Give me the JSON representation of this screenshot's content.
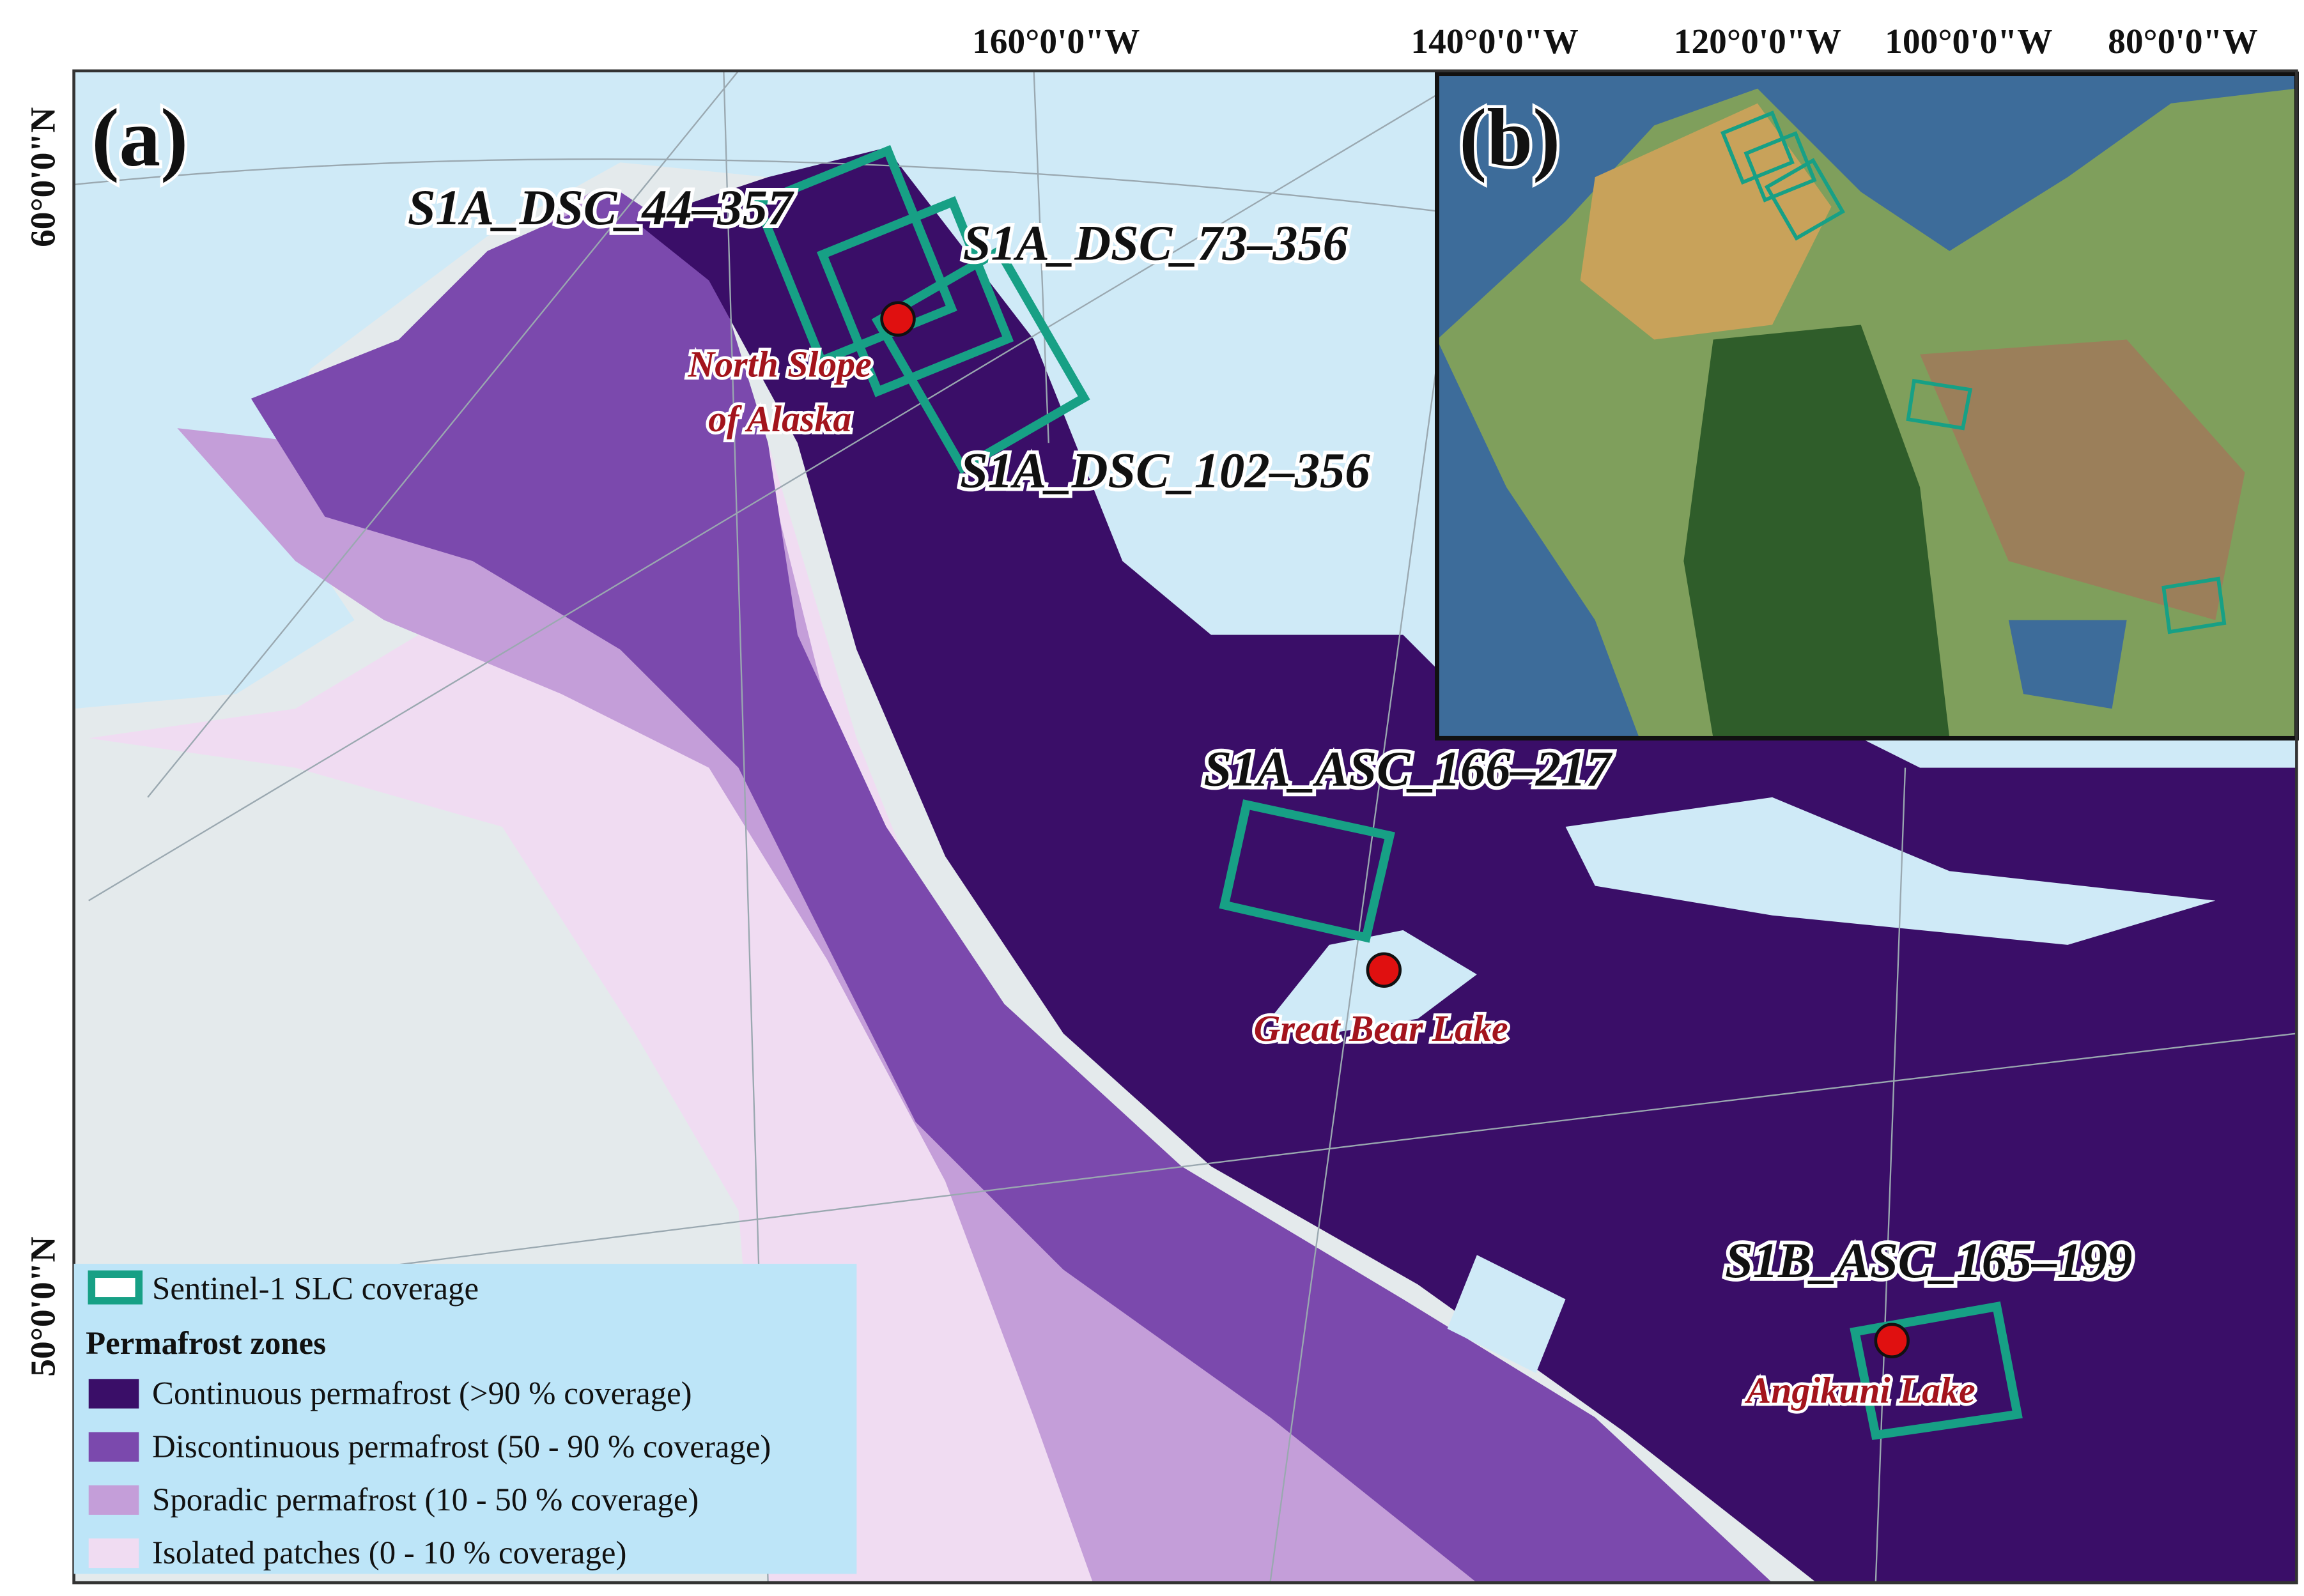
{
  "panel_a": {
    "label": "(a)",
    "lon_labels": [
      "160°0'0\"W",
      "140°0'0\"W"
    ],
    "lat_labels": [
      "60°0'0\"N",
      "50°0'0\"N"
    ],
    "swaths": [
      "S1A_DSC_44–357",
      "S1A_DSC_73–356",
      "S1A_DSC_102–356",
      "S1A_ASC_166–217",
      "S1B_ASC_165–199"
    ],
    "sites": [
      "North Slope",
      "of Alaska",
      "Great Bear Lake",
      "Angikuni Lake"
    ]
  },
  "panel_b": {
    "label": "(b)",
    "lon_labels": [
      "120°0'0\"W",
      "100°0'0\"W",
      "80°0'0\"W"
    ]
  },
  "legend": {
    "coverage": "Sentinel-1 SLC coverage",
    "zones_title": "Permafrost zones",
    "zones": [
      {
        "label": "Continuous permafrost (>90 % coverage)",
        "color": "#3a0e68"
      },
      {
        "label": "Discontinuous permafrost (50 - 90 % coverage)",
        "color": "#7b49ad"
      },
      {
        "label": "Sporadic permafrost (10 - 50 % coverage)",
        "color": "#c49ed9"
      },
      {
        "label": "Isolated patches (0 - 10 % coverage)",
        "color": "#f0dcf2"
      }
    ]
  }
}
